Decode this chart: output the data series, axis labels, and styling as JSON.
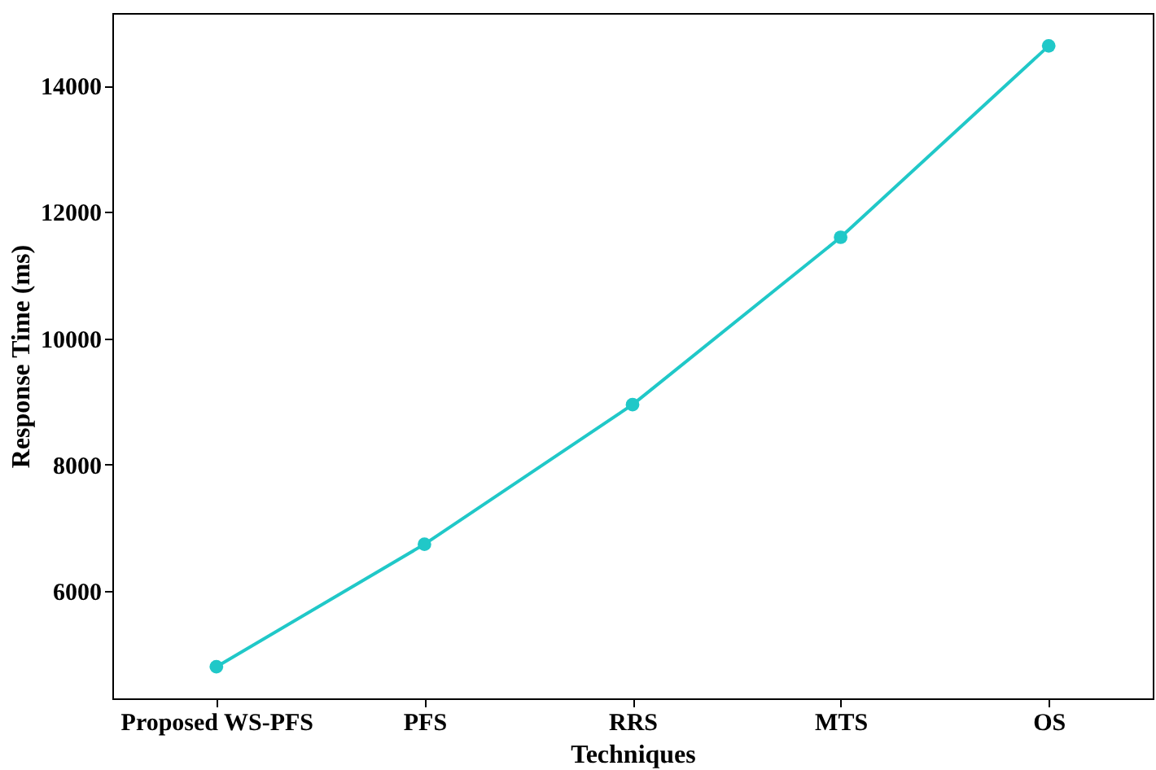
{
  "chart_data": {
    "type": "line",
    "xlabel": "Techniques",
    "ylabel": "Response Time (ms)",
    "categories": [
      "Proposed WS-PFS",
      "PFS",
      "RRS",
      "MTS",
      "OS"
    ],
    "series": [
      {
        "color": "#20c8c8",
        "values": [
          4800,
          6740,
          8950,
          11600,
          14630
        ]
      }
    ],
    "ylim": [
      4300,
      15150
    ],
    "yticks": [
      6000,
      8000,
      10000,
      12000,
      14000
    ],
    "grid": false,
    "legend": false,
    "marker": "circle",
    "line_style": "solid"
  }
}
